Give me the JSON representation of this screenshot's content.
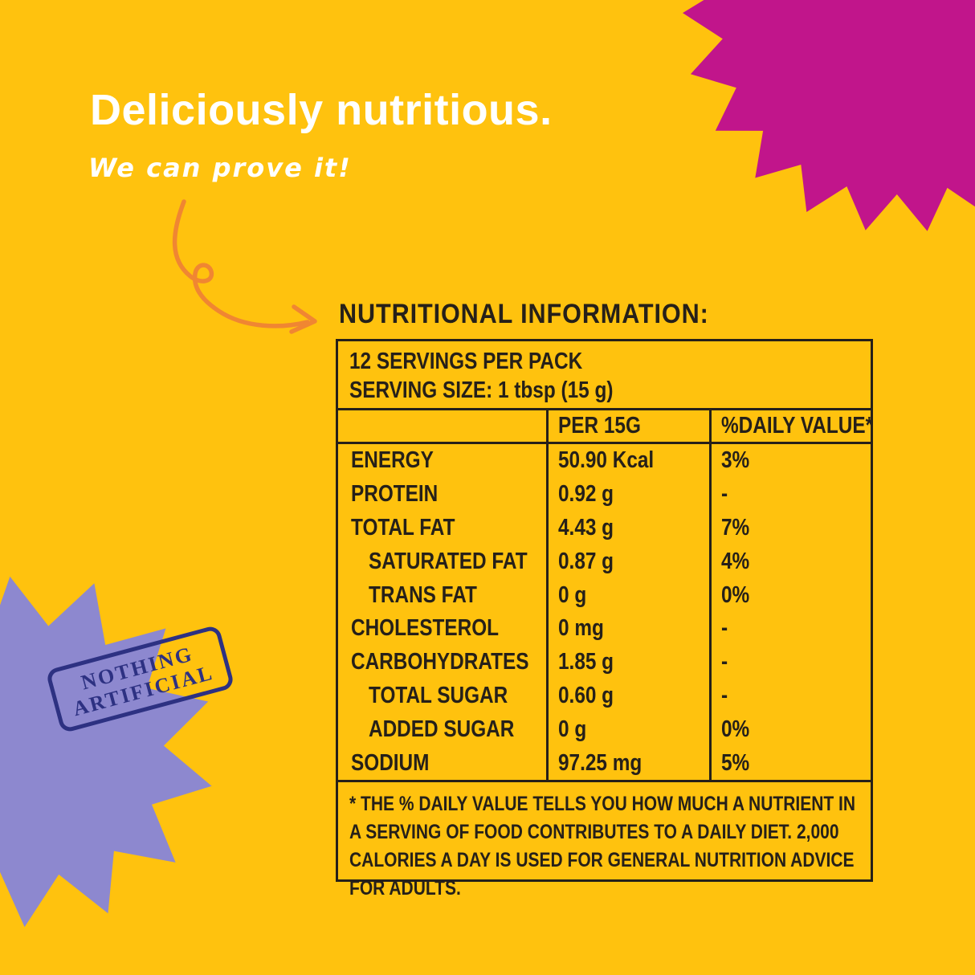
{
  "hero": {
    "title": "Deliciously nutritious.",
    "subtitle": "We can prove it!"
  },
  "stamp": {
    "line1": "NOTHING",
    "line2": "ARTIFICIAL"
  },
  "nutrition": {
    "heading": "NUTRITIONAL INFORMATION:",
    "servings_line1": "12 SERVINGS PER PACK",
    "servings_line2": "SERVING SIZE: 1 tbsp (15 g)",
    "columns": [
      "",
      "PER 15G",
      "%DAILY VALUE*"
    ],
    "rows": [
      {
        "label": "ENERGY",
        "value": "50.90 Kcal",
        "dv": "3%"
      },
      {
        "label": "PROTEIN",
        "value": "0.92 g",
        "dv": "-"
      },
      {
        "label": "TOTAL FAT",
        "value": "4.43 g",
        "dv": "7%"
      },
      {
        "label": "SATURATED FAT",
        "value": "0.87 g",
        "dv": "4%"
      },
      {
        "label": "TRANS FAT",
        "value": "0 g",
        "dv": "0%"
      },
      {
        "label": "CHOLESTEROL",
        "value": "0 mg",
        "dv": "-"
      },
      {
        "label": "CARBOHYDRATES",
        "value": "1.85 g",
        "dv": "-"
      },
      {
        "label": "TOTAL SUGAR",
        "value": "0.60 g",
        "dv": "-"
      },
      {
        "label": "ADDED SUGAR",
        "value": "0 g",
        "dv": "0%"
      },
      {
        "label": "SODIUM",
        "value": "97.25 mg",
        "dv": "5%"
      }
    ],
    "footnote": "* THE % DAILY VALUE TELLS YOU HOW MUCH A NUTRIENT IN A SERVING OF FOOD CONTRIBUTES TO A DAILY DIET. 2,000 CALORIES A DAY IS USED FOR GENERAL NUTRITION ADVICE FOR ADULTS."
  },
  "colors": {
    "background": "#FFC20E",
    "magenta": "#C1158B",
    "purple": "#8D88CF",
    "navy": "#2D3182",
    "ink": "#262019",
    "arrow": "#F08632",
    "white": "#FFFFFF"
  }
}
